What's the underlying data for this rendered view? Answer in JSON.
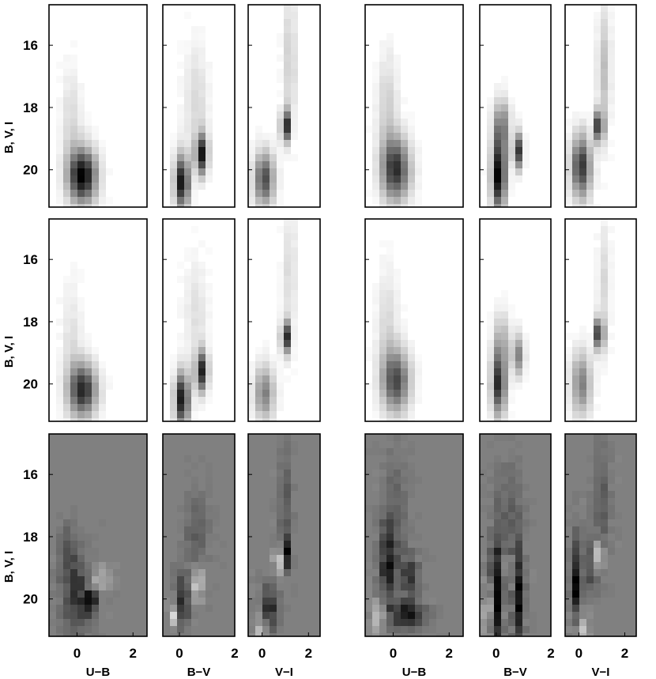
{
  "chart_data": {
    "type": "heatmap",
    "description_rows": 3,
    "ylabel": "B, V, I",
    "yticks": [
      16,
      18,
      20
    ],
    "ylim": [
      21.2,
      14.7
    ],
    "colors": {
      "background_top": "#ffffff",
      "background_residual": "#808080",
      "ink": "#000000"
    },
    "groups": [
      {
        "panels": [
          {
            "xlabel": "U−B",
            "xticks": [
              "0",
              "2"
            ],
            "xlim": [
              -1.0,
              2.5
            ]
          },
          {
            "xlabel": "B−V",
            "xticks": [
              "0",
              "2"
            ],
            "xlim": [
              -0.6,
              2.0
            ]
          },
          {
            "xlabel": "V−I",
            "xticks": [
              "0",
              "2"
            ],
            "xlim": [
              -0.6,
              2.5
            ]
          }
        ]
      },
      {
        "panels": [
          {
            "xlabel": "U−B",
            "xticks": [
              "0",
              "2"
            ],
            "xlim": [
              -1.0,
              2.5
            ]
          },
          {
            "xlabel": "B−V",
            "xticks": [
              "0",
              "2"
            ],
            "xlim": [
              -0.6,
              2.0
            ]
          },
          {
            "xlabel": "V−I",
            "xticks": [
              "0",
              "2"
            ],
            "xlim": [
              -0.6,
              2.5
            ]
          }
        ]
      }
    ],
    "rows": [
      {
        "kind": "density",
        "blobs": [
          [
            [
              0.2,
              20.2,
              0.35,
              0.6,
              1.0
            ],
            [
              -0.2,
              18.6,
              0.25,
              1.2,
              0.15
            ]
          ],
          [
            [
              0.1,
              20.4,
              0.18,
              0.6,
              0.95
            ],
            [
              0.8,
              19.5,
              0.15,
              0.45,
              0.9
            ],
            [
              0.6,
              17.8,
              0.3,
              1.2,
              0.15
            ]
          ],
          [
            [
              0.1,
              20.3,
              0.3,
              0.6,
              0.7
            ],
            [
              1.0,
              18.6,
              0.12,
              0.35,
              1.0
            ],
            [
              1.2,
              16.5,
              0.2,
              1.5,
              0.2
            ]
          ],
          [
            [
              0.1,
              20.0,
              0.35,
              0.7,
              0.8
            ],
            [
              -0.2,
              18.2,
              0.25,
              1.3,
              0.2
            ]
          ],
          [
            [
              0.1,
              20.2,
              0.18,
              0.8,
              1.0
            ],
            [
              0.8,
              19.4,
              0.12,
              0.4,
              0.8
            ],
            [
              0.2,
              18.6,
              0.2,
              0.6,
              0.5
            ]
          ],
          [
            [
              0.1,
              19.9,
              0.3,
              0.7,
              0.8
            ],
            [
              0.9,
              18.6,
              0.12,
              0.35,
              1.0
            ],
            [
              1.1,
              16.8,
              0.2,
              1.4,
              0.25
            ]
          ]
        ]
      },
      {
        "kind": "density",
        "blobs": [
          [
            [
              0.2,
              20.2,
              0.35,
              0.6,
              0.85
            ],
            [
              -0.2,
              18.6,
              0.25,
              1.2,
              0.12
            ]
          ],
          [
            [
              0.1,
              20.5,
              0.18,
              0.6,
              0.95
            ],
            [
              0.8,
              19.6,
              0.15,
              0.45,
              0.85
            ],
            [
              0.6,
              17.8,
              0.3,
              1.2,
              0.12
            ]
          ],
          [
            [
              0.1,
              20.3,
              0.3,
              0.6,
              0.5
            ],
            [
              1.0,
              18.5,
              0.12,
              0.35,
              1.0
            ],
            [
              1.2,
              16.5,
              0.2,
              1.5,
              0.15
            ]
          ],
          [
            [
              0.1,
              19.9,
              0.35,
              0.7,
              0.7
            ],
            [
              -0.2,
              18.2,
              0.25,
              1.3,
              0.15
            ]
          ],
          [
            [
              0.1,
              20.0,
              0.18,
              0.7,
              0.85
            ],
            [
              0.8,
              19.1,
              0.15,
              0.45,
              0.5
            ],
            [
              0.2,
              18.6,
              0.2,
              0.6,
              0.3
            ]
          ],
          [
            [
              0.1,
              20.0,
              0.3,
              0.7,
              0.5
            ],
            [
              0.9,
              18.4,
              0.12,
              0.35,
              1.0
            ],
            [
              1.1,
              16.8,
              0.2,
              1.4,
              0.15
            ]
          ]
        ]
      },
      {
        "kind": "residual",
        "blobs": [
          [
            [
              0.0,
              19.9,
              0.35,
              0.8,
              -0.6
            ],
            [
              0.5,
              20.1,
              0.15,
              0.25,
              -0.9
            ],
            [
              -0.3,
              18.5,
              0.2,
              0.6,
              -0.4
            ],
            [
              0.8,
              19.3,
              0.3,
              0.3,
              0.35
            ]
          ],
          [
            [
              0.1,
              20.0,
              0.2,
              0.6,
              -0.7
            ],
            [
              0.6,
              19.5,
              0.2,
              0.4,
              0.6
            ],
            [
              -0.2,
              20.5,
              0.12,
              0.3,
              0.7
            ],
            [
              0.6,
              18.0,
              0.3,
              1.0,
              -0.25
            ]
          ],
          [
            [
              0.7,
              18.8,
              0.12,
              0.25,
              1.0
            ],
            [
              1.1,
              18.5,
              0.1,
              0.35,
              -0.9
            ],
            [
              0.3,
              20.3,
              0.25,
              0.5,
              -0.7
            ],
            [
              0.0,
              21.0,
              0.2,
              0.3,
              0.6
            ],
            [
              1.0,
              17.0,
              0.2,
              1.2,
              -0.3
            ]
          ],
          [
            [
              -0.2,
              19.0,
              0.2,
              1.0,
              -0.7
            ],
            [
              0.5,
              20.5,
              0.4,
              0.3,
              -0.8
            ],
            [
              0.6,
              19.2,
              0.2,
              0.4,
              -0.6
            ],
            [
              -0.5,
              20.6,
              0.2,
              0.4,
              0.5
            ],
            [
              0.1,
              17.5,
              0.3,
              1.5,
              -0.25
            ]
          ],
          [
            [
              0.0,
              19.8,
              0.15,
              1.3,
              -1.0
            ],
            [
              0.8,
              20.0,
              0.15,
              1.0,
              -1.0
            ],
            [
              0.45,
              19.4,
              0.1,
              1.0,
              0.35
            ],
            [
              -0.3,
              20.3,
              0.1,
              0.6,
              0.8
            ],
            [
              0.5,
              17.5,
              0.3,
              1.2,
              -0.3
            ]
          ],
          [
            [
              -0.1,
              19.5,
              0.15,
              1.0,
              -0.9
            ],
            [
              0.85,
              18.6,
              0.15,
              0.3,
              1.0
            ],
            [
              0.6,
              19.0,
              0.15,
              0.5,
              -0.6
            ],
            [
              0.1,
              21.0,
              0.2,
              0.4,
              0.6
            ],
            [
              1.0,
              17.0,
              0.25,
              1.3,
              -0.3
            ]
          ]
        ]
      }
    ]
  }
}
